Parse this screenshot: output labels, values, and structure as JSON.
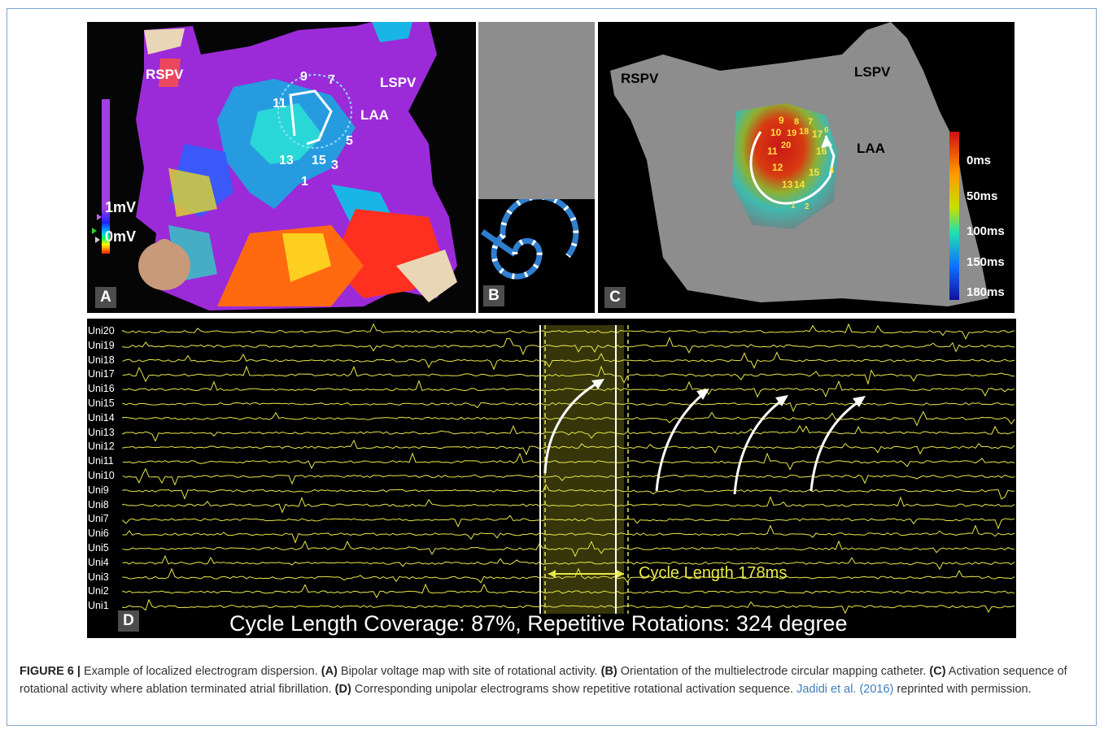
{
  "panels": {
    "a": {
      "label": "A",
      "landmarks": {
        "rspv": "RSPV",
        "lspv": "LSPV",
        "laa": "LAA"
      },
      "voltage_scale": {
        "high": "1mV",
        "low": "0mV"
      },
      "electrode_numbers": [
        "9",
        "7",
        "11",
        "5",
        "13",
        "15",
        "3",
        "1"
      ]
    },
    "b": {
      "label": "B"
    },
    "c": {
      "label": "C",
      "landmarks": {
        "rspv": "RSPV",
        "lspv": "LSPV",
        "laa": "LAA"
      },
      "color_scale": [
        "0ms",
        "50ms",
        "100ms",
        "150ms",
        "180ms"
      ],
      "electrode_numbers": [
        "9",
        "8",
        "7",
        "10",
        "19",
        "18",
        "17",
        "6",
        "11",
        "20",
        "16",
        "12",
        "15",
        "4",
        "13",
        "14",
        "1",
        "2"
      ]
    },
    "d": {
      "label": "D",
      "channels": [
        "Uni20",
        "Uni19",
        "Uni18",
        "Uni17",
        "Uni16",
        "Uni15",
        "Uni14",
        "Uni13",
        "Uni12",
        "Uni11",
        "Uni10",
        "Uni9",
        "Uni8",
        "Uni7",
        "Uni6",
        "Uni5",
        "Uni4",
        "Uni3",
        "Uni2",
        "Uni1"
      ],
      "cycle_length_label": "Cycle Length 178ms",
      "coverage_text": "Cycle Length Coverage: 87%, Repetitive Rotations: 324 degree"
    }
  },
  "caption": {
    "figure_label": "FIGURE 6 |",
    "intro": " Example of localized electrogram dispersion. ",
    "a_tag": "(A)",
    "a_text": " Bipolar voltage map with site of rotational activity. ",
    "b_tag": "(B)",
    "b_text": " Orientation of the multielectrode circular mapping catheter. ",
    "c_tag": "(C)",
    "c_text": " Activation sequence of rotational activity where ablation terminated atrial fibrillation. ",
    "d_tag": "(D)",
    "d_text": " Corresponding unipolar electrograms show repetitive rotational activation sequence. ",
    "citation": "Jadidi et al. (2016)",
    "suffix": " reprinted with permission."
  },
  "colors": {
    "trace": "#e8e84a",
    "caption_link": "#3d7dbf",
    "frame_border": "#7ea3cf"
  }
}
